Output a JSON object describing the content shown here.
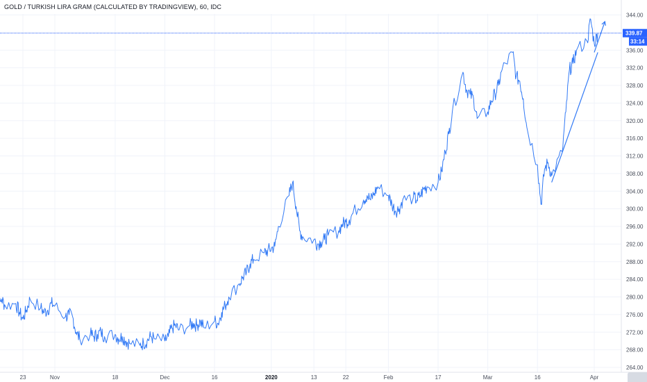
{
  "header": {
    "title": "GOLD / TURKISH LIRA GRAM (CALCULATED BY TRADINGVIEW), 60, IDC"
  },
  "price_badge": {
    "price": "339.87",
    "countdown": "33:14",
    "color": "#2962ff"
  },
  "colors": {
    "line": "#3179f5",
    "grid": "#f0f3fa",
    "price_line": "#2962ff"
  },
  "chart_data": {
    "type": "line",
    "title": "GOLD / TURKISH LIRA GRAM (CALCULATED BY TRADINGVIEW), 60, IDC",
    "xlabel": "",
    "ylabel": "",
    "ylim": [
      262,
      346
    ],
    "y_ticks": [
      264,
      268,
      272,
      276,
      280,
      284,
      288,
      292,
      296,
      300,
      304,
      308,
      312,
      316,
      320,
      324,
      328,
      332,
      336,
      340,
      344
    ],
    "x_tick_labels": [
      {
        "label": "23",
        "date": "2019-10-23",
        "bold": false
      },
      {
        "label": "Nov",
        "date": "2019-11-01",
        "bold": false
      },
      {
        "label": "18",
        "date": "2019-11-18",
        "bold": false
      },
      {
        "label": "Dec",
        "date": "2019-12-02",
        "bold": false
      },
      {
        "label": "16",
        "date": "2019-12-16",
        "bold": false
      },
      {
        "label": "2020",
        "date": "2020-01-01",
        "bold": true
      },
      {
        "label": "13",
        "date": "2020-01-13",
        "bold": false
      },
      {
        "label": "22",
        "date": "2020-01-22",
        "bold": false
      },
      {
        "label": "Feb",
        "date": "2020-02-03",
        "bold": false
      },
      {
        "label": "17",
        "date": "2020-02-17",
        "bold": false
      },
      {
        "label": "Mar",
        "date": "2020-03-02",
        "bold": false
      },
      {
        "label": "16",
        "date": "2020-03-16",
        "bold": false
      },
      {
        "label": "Apr",
        "date": "2020-04-01",
        "bold": false
      }
    ],
    "grid": true,
    "last_price": 339.87,
    "series": [
      {
        "points": [
          [
            "2019-10-15",
            281.0
          ],
          [
            "2019-10-16",
            277.5
          ],
          [
            "2019-10-17",
            279.5
          ],
          [
            "2019-10-18",
            278.0
          ],
          [
            "2019-10-21",
            278.5
          ],
          [
            "2019-10-22",
            276.5
          ],
          [
            "2019-10-23",
            275.0
          ],
          [
            "2019-10-24",
            277.0
          ],
          [
            "2019-10-25",
            279.5
          ],
          [
            "2019-10-28",
            277.5
          ],
          [
            "2019-10-29",
            276.5
          ],
          [
            "2019-10-30",
            277.0
          ],
          [
            "2019-10-31",
            278.5
          ],
          [
            "2019-11-01",
            278.0
          ],
          [
            "2019-11-04",
            275.5
          ],
          [
            "2019-11-05",
            276.0
          ],
          [
            "2019-11-06",
            275.5
          ],
          [
            "2019-11-07",
            272.0
          ],
          [
            "2019-11-08",
            270.5
          ],
          [
            "2019-11-11",
            271.5
          ],
          [
            "2019-11-12",
            271.0
          ],
          [
            "2019-11-13",
            271.5
          ],
          [
            "2019-11-14",
            272.0
          ],
          [
            "2019-11-15",
            271.0
          ],
          [
            "2019-11-18",
            271.5
          ],
          [
            "2019-11-19",
            270.5
          ],
          [
            "2019-11-20",
            271.0
          ],
          [
            "2019-11-21",
            270.0
          ],
          [
            "2019-11-22",
            269.5
          ],
          [
            "2019-11-25",
            269.0
          ],
          [
            "2019-11-26",
            269.5
          ],
          [
            "2019-11-27",
            270.0
          ],
          [
            "2019-11-28",
            271.0
          ],
          [
            "2019-11-29",
            270.5
          ],
          [
            "2019-12-02",
            270.0
          ],
          [
            "2019-12-03",
            271.0
          ],
          [
            "2019-12-04",
            273.0
          ],
          [
            "2019-12-05",
            273.5
          ],
          [
            "2019-12-06",
            272.5
          ],
          [
            "2019-12-09",
            273.5
          ],
          [
            "2019-12-10",
            274.0
          ],
          [
            "2019-12-11",
            273.5
          ],
          [
            "2019-12-12",
            274.5
          ],
          [
            "2019-12-13",
            273.0
          ],
          [
            "2019-12-16",
            274.5
          ],
          [
            "2019-12-17",
            274.0
          ],
          [
            "2019-12-18",
            276.5
          ],
          [
            "2019-12-19",
            278.0
          ],
          [
            "2019-12-20",
            280.0
          ],
          [
            "2019-12-23",
            283.0
          ],
          [
            "2019-12-24",
            284.5
          ],
          [
            "2019-12-25",
            285.5
          ],
          [
            "2019-12-26",
            287.5
          ],
          [
            "2019-12-27",
            288.5
          ],
          [
            "2019-12-30",
            290.0
          ],
          [
            "2019-12-31",
            290.5
          ],
          [
            "2020-01-01",
            291.0
          ],
          [
            "2020-01-02",
            291.5
          ],
          [
            "2020-01-03",
            296.0
          ],
          [
            "2020-01-06",
            303.0
          ],
          [
            "2020-01-07",
            306.0
          ],
          [
            "2020-01-08",
            300.5
          ],
          [
            "2020-01-09",
            295.0
          ],
          [
            "2020-01-10",
            293.5
          ],
          [
            "2020-01-13",
            293.0
          ],
          [
            "2020-01-14",
            292.0
          ],
          [
            "2020-01-15",
            292.5
          ],
          [
            "2020-01-16",
            293.0
          ],
          [
            "2020-01-17",
            294.0
          ],
          [
            "2020-01-20",
            295.0
          ],
          [
            "2020-01-21",
            296.5
          ],
          [
            "2020-01-22",
            297.0
          ],
          [
            "2020-01-23",
            297.5
          ],
          [
            "2020-01-24",
            299.0
          ],
          [
            "2020-01-27",
            302.0
          ],
          [
            "2020-01-28",
            303.0
          ],
          [
            "2020-01-29",
            302.0
          ],
          [
            "2020-01-30",
            303.5
          ],
          [
            "2020-01-31",
            305.0
          ],
          [
            "2020-02-03",
            303.0
          ],
          [
            "2020-02-04",
            301.0
          ],
          [
            "2020-02-05",
            299.5
          ],
          [
            "2020-02-06",
            300.0
          ],
          [
            "2020-02-07",
            302.0
          ],
          [
            "2020-02-10",
            302.5
          ],
          [
            "2020-02-11",
            302.0
          ],
          [
            "2020-02-12",
            303.0
          ],
          [
            "2020-02-13",
            304.5
          ],
          [
            "2020-02-14",
            305.0
          ],
          [
            "2020-02-17",
            306.0
          ],
          [
            "2020-02-18",
            308.5
          ],
          [
            "2020-02-19",
            313.0
          ],
          [
            "2020-02-20",
            317.0
          ],
          [
            "2020-02-21",
            322.0
          ],
          [
            "2020-02-24",
            331.0
          ],
          [
            "2020-02-25",
            327.0
          ],
          [
            "2020-02-26",
            326.0
          ],
          [
            "2020-02-27",
            325.0
          ],
          [
            "2020-02-28",
            320.5
          ],
          [
            "2020-03-02",
            322.0
          ],
          [
            "2020-03-03",
            324.5
          ],
          [
            "2020-03-04",
            326.0
          ],
          [
            "2020-03-05",
            328.0
          ],
          [
            "2020-03-06",
            331.5
          ],
          [
            "2020-03-09",
            335.5
          ],
          [
            "2020-03-10",
            330.0
          ],
          [
            "2020-03-11",
            329.0
          ],
          [
            "2020-03-12",
            325.0
          ],
          [
            "2020-03-13",
            318.5
          ],
          [
            "2020-03-16",
            310.0
          ],
          [
            "2020-03-17",
            301.0
          ],
          [
            "2020-03-18",
            309.0
          ],
          [
            "2020-03-19",
            310.5
          ],
          [
            "2020-03-20",
            307.5
          ],
          [
            "2020-03-23",
            313.0
          ],
          [
            "2020-03-24",
            322.0
          ],
          [
            "2020-03-25",
            331.5
          ],
          [
            "2020-03-26",
            333.0
          ],
          [
            "2020-03-27",
            336.0
          ],
          [
            "2020-03-30",
            338.0
          ],
          [
            "2020-03-31",
            343.0
          ],
          [
            "2020-04-01",
            337.5
          ],
          [
            "2020-04-02",
            339.87
          ]
        ]
      }
    ],
    "annotations": [
      {
        "type": "trend_line",
        "from": [
          "2020-03-20",
          306.0
        ],
        "to": [
          "2020-04-02",
          335.5
        ]
      },
      {
        "type": "arrow",
        "from": [
          "2020-04-01",
          335.5
        ],
        "to": [
          "2020-04-04",
          342.5
        ]
      }
    ]
  }
}
